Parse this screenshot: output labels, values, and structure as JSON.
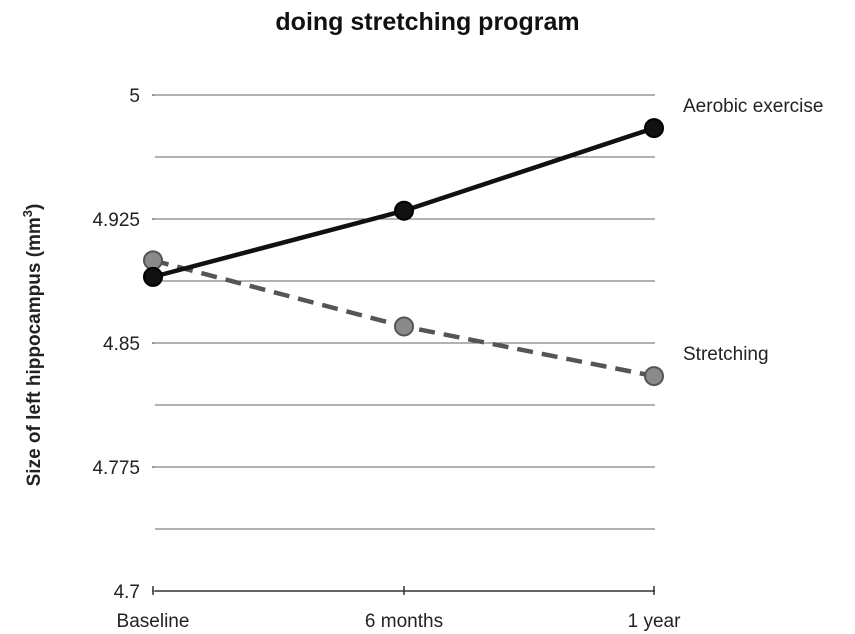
{
  "chart_data": {
    "type": "line",
    "title": "doing stretching program",
    "ylabel": "Size of left hippocampus (mm",
    "ylabel_superscript": "3",
    "ylabel_suffix": ")",
    "xlabel": "",
    "categories": [
      "Baseline",
      "6 months",
      "1 year"
    ],
    "ylim": [
      4.7,
      5.0
    ],
    "yticks": [
      4.7,
      4.775,
      4.85,
      4.925,
      5
    ],
    "ytick_labels": [
      "4.7",
      "4.775",
      "4.85",
      "4.925",
      "5"
    ],
    "grid_step": 0.0375,
    "grid": true,
    "series": [
      {
        "name": "Aerobic exercise",
        "values": [
          4.89,
          4.93,
          4.98
        ],
        "style": "solid",
        "color": "#111111",
        "marker_color": "#111111"
      },
      {
        "name": "Stretching",
        "values": [
          4.9,
          4.86,
          4.83
        ],
        "style": "dashed",
        "color": "#555555",
        "marker_color": "#8a8a8a"
      }
    ]
  }
}
